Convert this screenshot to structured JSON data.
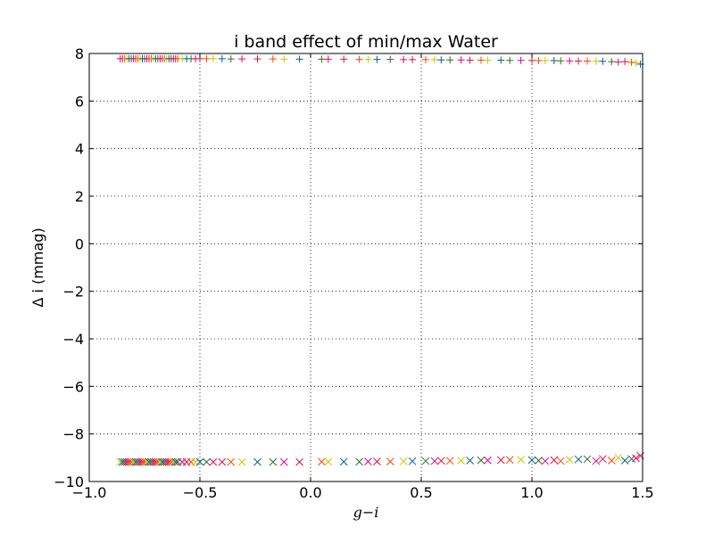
{
  "chart_data": {
    "type": "scatter",
    "title": "i band effect of min/max Water",
    "xlabel": "g−i",
    "ylabel": "Δ i (mmag)",
    "xlim": [
      -1.0,
      1.5
    ],
    "ylim": [
      -10,
      8
    ],
    "x_ticks": [
      "−1.0",
      "−0.5",
      "0.0",
      "0.5",
      "1.0",
      "1.5"
    ],
    "y_ticks": [
      "−10",
      "−8",
      "−6",
      "−4",
      "−2",
      "0",
      "2",
      "4",
      "6",
      "8"
    ],
    "grid": true,
    "legend": "none",
    "series_colors": [
      "#e6007e",
      "#dc143c",
      "#ff4500",
      "#c8c800",
      "#00648c",
      "#2e6e2e"
    ],
    "series": [
      {
        "marker": "+",
        "values_x": [
          -0.86,
          -0.85,
          -0.84,
          -0.83,
          -0.82,
          -0.81,
          -0.8,
          -0.79,
          -0.78,
          -0.77,
          -0.76,
          -0.75,
          -0.74,
          -0.73,
          -0.72,
          -0.71,
          -0.7,
          -0.69,
          -0.68,
          -0.67,
          -0.66,
          -0.65,
          -0.64,
          -0.63,
          -0.62,
          -0.61,
          -0.6,
          -0.58,
          -0.56,
          -0.54,
          -0.52,
          -0.5,
          -0.47,
          -0.44,
          -0.4,
          -0.36,
          -0.31,
          -0.24,
          -0.17,
          -0.12,
          -0.05,
          0.05,
          0.08,
          0.15,
          0.22,
          0.26,
          0.3,
          0.36,
          0.42,
          0.46,
          0.52,
          0.56,
          0.59,
          0.63,
          0.68,
          0.72,
          0.77,
          0.8,
          0.86,
          0.9,
          0.95,
          1.0,
          1.03,
          1.06,
          1.1,
          1.13,
          1.17,
          1.21,
          1.25,
          1.29,
          1.32,
          1.36,
          1.39,
          1.42,
          1.45,
          1.47,
          1.49
        ],
        "values_y": [
          7.78,
          7.78,
          7.78,
          7.78,
          7.78,
          7.78,
          7.78,
          7.78,
          7.78,
          7.78,
          7.78,
          7.78,
          7.78,
          7.78,
          7.78,
          7.78,
          7.78,
          7.78,
          7.78,
          7.78,
          7.78,
          7.78,
          7.78,
          7.78,
          7.78,
          7.78,
          7.78,
          7.78,
          7.78,
          7.78,
          7.78,
          7.78,
          7.78,
          7.78,
          7.78,
          7.77,
          7.77,
          7.77,
          7.77,
          7.76,
          7.76,
          7.76,
          7.76,
          7.76,
          7.75,
          7.75,
          7.75,
          7.75,
          7.74,
          7.74,
          7.74,
          7.74,
          7.73,
          7.73,
          7.73,
          7.72,
          7.72,
          7.72,
          7.72,
          7.71,
          7.71,
          7.71,
          7.7,
          7.7,
          7.7,
          7.69,
          7.69,
          7.68,
          7.68,
          7.67,
          7.67,
          7.66,
          7.64,
          7.66,
          7.63,
          7.6,
          7.55
        ]
      },
      {
        "marker": "x",
        "values_x": [
          -0.86,
          -0.85,
          -0.84,
          -0.83,
          -0.82,
          -0.81,
          -0.8,
          -0.79,
          -0.78,
          -0.77,
          -0.76,
          -0.75,
          -0.74,
          -0.73,
          -0.72,
          -0.71,
          -0.7,
          -0.69,
          -0.68,
          -0.67,
          -0.66,
          -0.65,
          -0.64,
          -0.63,
          -0.62,
          -0.61,
          -0.6,
          -0.58,
          -0.56,
          -0.54,
          -0.52,
          -0.5,
          -0.47,
          -0.44,
          -0.4,
          -0.36,
          -0.31,
          -0.24,
          -0.17,
          -0.12,
          -0.05,
          0.05,
          0.08,
          0.15,
          0.22,
          0.26,
          0.3,
          0.36,
          0.42,
          0.46,
          0.52,
          0.56,
          0.59,
          0.63,
          0.68,
          0.72,
          0.77,
          0.8,
          0.86,
          0.9,
          0.95,
          1.0,
          1.03,
          1.06,
          1.1,
          1.13,
          1.17,
          1.21,
          1.25,
          1.29,
          1.32,
          1.36,
          1.39,
          1.42,
          1.45,
          1.47,
          1.49
        ],
        "values_y": [
          -9.18,
          -9.18,
          -9.18,
          -9.18,
          -9.18,
          -9.18,
          -9.18,
          -9.18,
          -9.18,
          -9.18,
          -9.18,
          -9.18,
          -9.18,
          -9.18,
          -9.18,
          -9.18,
          -9.18,
          -9.18,
          -9.18,
          -9.18,
          -9.18,
          -9.18,
          -9.18,
          -9.18,
          -9.18,
          -9.18,
          -9.18,
          -9.18,
          -9.18,
          -9.18,
          -9.18,
          -9.18,
          -9.18,
          -9.18,
          -9.18,
          -9.18,
          -9.18,
          -9.18,
          -9.18,
          -9.18,
          -9.18,
          -9.17,
          -9.17,
          -9.17,
          -9.17,
          -9.16,
          -9.16,
          -9.16,
          -9.15,
          -9.15,
          -9.14,
          -9.14,
          -9.13,
          -9.13,
          -9.12,
          -9.12,
          -9.11,
          -9.11,
          -9.1,
          -9.09,
          -9.08,
          -9.1,
          -9.12,
          -9.14,
          -9.1,
          -9.14,
          -9.08,
          -9.07,
          -9.06,
          -9.14,
          -9.05,
          -9.12,
          -9.0,
          -9.12,
          -9.05,
          -9.02,
          -8.92
        ]
      }
    ]
  }
}
